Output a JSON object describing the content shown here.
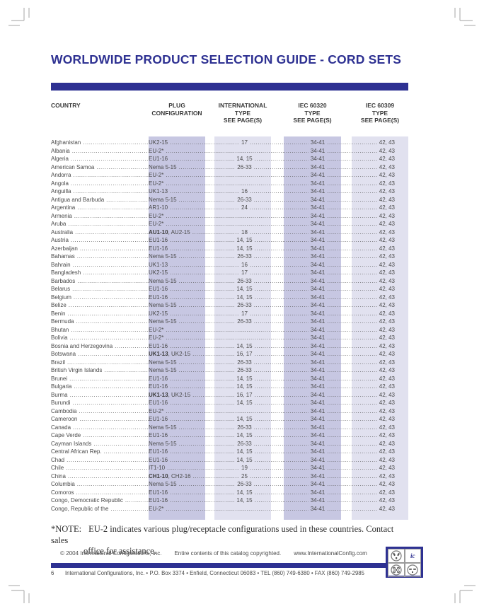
{
  "page": {
    "title": "WORLDWIDE PRODUCT SELECTION GUIDE - CORD SETS"
  },
  "colors": {
    "accent_blue": "#2e3192",
    "band_dark": "#c7c7e2",
    "band_light": "#e1e1ef"
  },
  "table": {
    "headers": {
      "country": "COUNTRY",
      "plug": {
        "l1": "PLUG",
        "l2": "CONFIGURATION"
      },
      "intl": {
        "l1": "INTERNATIONAL",
        "l2": "TYPE",
        "l3": "SEE PAGE(S)"
      },
      "iec60320": {
        "l1": "IEC 60320",
        "l2": "TYPE",
        "l3": "SEE PAGE(S)"
      },
      "iec60309": {
        "l1": "IEC 60309",
        "l2": "TYPE",
        "l3": "SEE PAGE(S)"
      }
    },
    "rows": [
      {
        "country": "Afghanistan",
        "plug_bold": "",
        "plug": "UK2-15",
        "intl": "17",
        "iec320": "34-41",
        "iec309": "42, 43"
      },
      {
        "country": "Albania",
        "plug_bold": "",
        "plug": "EU-2*",
        "intl": "",
        "iec320": "34-41",
        "iec309": "42, 43"
      },
      {
        "country": "Algeria",
        "plug_bold": "",
        "plug": "EU1-16",
        "intl": "14, 15",
        "iec320": "34-41",
        "iec309": "42, 43"
      },
      {
        "country": "American Samoa",
        "plug_bold": "",
        "plug": "Nema 5-15",
        "intl": "26-33",
        "iec320": "34-41",
        "iec309": "42, 43"
      },
      {
        "country": "Andorra",
        "plug_bold": "",
        "plug": "EU-2*",
        "intl": "",
        "iec320": "34-41",
        "iec309": "42, 43"
      },
      {
        "country": "Angola",
        "plug_bold": "",
        "plug": "EU-2*",
        "intl": "",
        "iec320": "34-41",
        "iec309": "42, 43"
      },
      {
        "country": "Anguilla",
        "plug_bold": "",
        "plug": "UK1-13",
        "intl": "16",
        "iec320": "34-41",
        "iec309": "42, 43"
      },
      {
        "country": "Antigua and Barbuda",
        "plug_bold": "",
        "plug": "Nema 5-15",
        "intl": "26-33",
        "iec320": "34-41",
        "iec309": "42, 43"
      },
      {
        "country": "Argentina",
        "plug_bold": "",
        "plug": "AR1-10",
        "intl": "24",
        "iec320": "34-41",
        "iec309": "42, 43"
      },
      {
        "country": "Armenia",
        "plug_bold": "",
        "plug": "EU-2*",
        "intl": "",
        "iec320": "34-41",
        "iec309": "42, 43"
      },
      {
        "country": "Aruba",
        "plug_bold": "",
        "plug": "EU-2*",
        "intl": "",
        "iec320": "34-41",
        "iec309": "42, 43"
      },
      {
        "country": "Australia",
        "plug_bold": "AU1-10",
        "plug": ", AU2-15",
        "intl": "18",
        "iec320": "34-41",
        "iec309": "42, 43"
      },
      {
        "country": "Austria",
        "plug_bold": "",
        "plug": "EU1-16",
        "intl": "14, 15",
        "iec320": "34-41",
        "iec309": "42, 43"
      },
      {
        "country": "Azerbaijan",
        "plug_bold": "",
        "plug": "EU1-16",
        "intl": "14, 15",
        "iec320": "34-41",
        "iec309": "42, 43"
      },
      {
        "country": "Bahamas",
        "plug_bold": "",
        "plug": "Nema 5-15",
        "intl": "26-33",
        "iec320": "34-41",
        "iec309": "42, 43"
      },
      {
        "country": "Bahrain",
        "plug_bold": "",
        "plug": "UK1-13",
        "intl": "16",
        "iec320": "34-41",
        "iec309": "42, 43"
      },
      {
        "country": "Bangladesh",
        "plug_bold": "",
        "plug": "UK2-15",
        "intl": "17",
        "iec320": "34-41",
        "iec309": "42, 43"
      },
      {
        "country": "Barbados",
        "plug_bold": "",
        "plug": "Nema 5-15",
        "intl": "26-33",
        "iec320": "34-41",
        "iec309": "42, 43"
      },
      {
        "country": "Belarus",
        "plug_bold": "",
        "plug": "EU1-16",
        "intl": "14, 15",
        "iec320": "34-41",
        "iec309": "42, 43"
      },
      {
        "country": "Belgium",
        "plug_bold": "",
        "plug": "EU1-16",
        "intl": "14, 15",
        "iec320": "34-41",
        "iec309": "42, 43"
      },
      {
        "country": "Belize",
        "plug_bold": "",
        "plug": "Nema 5-15",
        "intl": "26-33",
        "iec320": "34-41",
        "iec309": "42, 43"
      },
      {
        "country": "Benin",
        "plug_bold": "",
        "plug": "UK2-15",
        "intl": "17",
        "iec320": "34-41",
        "iec309": "42, 43"
      },
      {
        "country": "Bermuda",
        "plug_bold": "",
        "plug": "Nema 5-15",
        "intl": "26-33",
        "iec320": "34-41",
        "iec309": "42, 43"
      },
      {
        "country": "Bhutan",
        "plug_bold": "",
        "plug": "EU-2*",
        "intl": "",
        "iec320": "34-41",
        "iec309": "42, 43"
      },
      {
        "country": "Bolivia",
        "plug_bold": "",
        "plug": "EU-2*",
        "intl": "",
        "iec320": "34-41",
        "iec309": "42, 43"
      },
      {
        "country": "Bosnia and Herzegovina",
        "plug_bold": "",
        "plug": "EU1-16",
        "intl": "14, 15",
        "iec320": "34-41",
        "iec309": "42, 43"
      },
      {
        "country": "Botswana",
        "plug_bold": "UK1-13",
        "plug": ", UK2-15",
        "intl": "16, 17",
        "iec320": "34-41",
        "iec309": "42, 43"
      },
      {
        "country": "Brazil",
        "plug_bold": "",
        "plug": "Nema 5-15",
        "intl": "26-33",
        "iec320": "34-41",
        "iec309": "42, 43"
      },
      {
        "country": "British Virgin Islands",
        "plug_bold": "",
        "plug": "Nema 5-15",
        "intl": "26-33",
        "iec320": "34-41",
        "iec309": "42, 43"
      },
      {
        "country": "Brunei",
        "plug_bold": "",
        "plug": "EU1-16",
        "intl": "14, 15",
        "iec320": "34-41",
        "iec309": "42, 43"
      },
      {
        "country": "Bulgaria",
        "plug_bold": "",
        "plug": "EU1-16",
        "intl": "14, 15",
        "iec320": "34-41",
        "iec309": "42, 43"
      },
      {
        "country": "Burma",
        "plug_bold": "UK1-13",
        "plug": ", UK2-15",
        "intl": "16, 17",
        "iec320": "34-41",
        "iec309": "42, 43"
      },
      {
        "country": "Burundi",
        "plug_bold": "",
        "plug": "EU1-16",
        "intl": "14, 15",
        "iec320": "34-41",
        "iec309": "42, 43"
      },
      {
        "country": "Cambodia",
        "plug_bold": "",
        "plug": "EU-2*",
        "intl": "",
        "iec320": "34-41",
        "iec309": "42, 43"
      },
      {
        "country": "Cameroon",
        "plug_bold": "",
        "plug": "EU1-16",
        "intl": "14, 15",
        "iec320": "34-41",
        "iec309": "42, 43"
      },
      {
        "country": "Canada",
        "plug_bold": "",
        "plug": "Nema 5-15",
        "intl": "26-33",
        "iec320": "34-41",
        "iec309": "42, 43"
      },
      {
        "country": "Cape Verde",
        "plug_bold": "",
        "plug": "EU1-16",
        "intl": "14, 15",
        "iec320": "34-41",
        "iec309": "42, 43"
      },
      {
        "country": "Cayman Islands",
        "plug_bold": "",
        "plug": "Nema 5-15",
        "intl": "26-33",
        "iec320": "34-41",
        "iec309": "42, 43"
      },
      {
        "country": "Central African Rep.",
        "plug_bold": "",
        "plug": "EU1-16",
        "intl": "14, 15",
        "iec320": "34-41",
        "iec309": "42, 43"
      },
      {
        "country": "Chad",
        "plug_bold": "",
        "plug": "EU1-16",
        "intl": "14, 15",
        "iec320": "34-41",
        "iec309": "42, 43"
      },
      {
        "country": "Chile",
        "plug_bold": "",
        "plug": "IT1-10",
        "intl": "19",
        "iec320": "34-41",
        "iec309": "42, 43"
      },
      {
        "country": "China",
        "plug_bold": "CH1-10",
        "plug": ", CH2-16",
        "intl": "25",
        "iec320": "34-41",
        "iec309": "42, 43"
      },
      {
        "country": "Columbia",
        "plug_bold": "",
        "plug": "Nema 5-15",
        "intl": "26-33",
        "iec320": "34-41",
        "iec309": "42, 43"
      },
      {
        "country": "Comoros",
        "plug_bold": "",
        "plug": "EU1-16",
        "intl": "14, 15",
        "iec320": "34-41",
        "iec309": "42, 43"
      },
      {
        "country": "Congo, Democratic Republic",
        "plug_bold": "",
        "plug": "EU1-16",
        "intl": "14, 15",
        "iec320": "34-41",
        "iec309": "42, 43"
      },
      {
        "country": "Congo, Republic of the",
        "plug_bold": "",
        "plug": "EU-2*",
        "intl": "",
        "iec320": "34-41",
        "iec309": "42, 43"
      }
    ]
  },
  "note": {
    "label": "*NOTE:",
    "line1": "EU-2 indicates various plug/receptacle configurations used in these countries. Contact sales",
    "line2": "office for assistance."
  },
  "footer": {
    "copyright": "© 2004 International Configurations, Inc.",
    "contents": "Entire contents of this catalog copyrighted.",
    "website": "www.InternationalConfig.com",
    "page_number": "6",
    "address": "International Configurations, Inc. • P.O. Box 3374 • Enfield, Connecticut 06083 • TEL (860) 749-6380 • FAX (860) 749-2985",
    "ic_logo": "ic"
  }
}
